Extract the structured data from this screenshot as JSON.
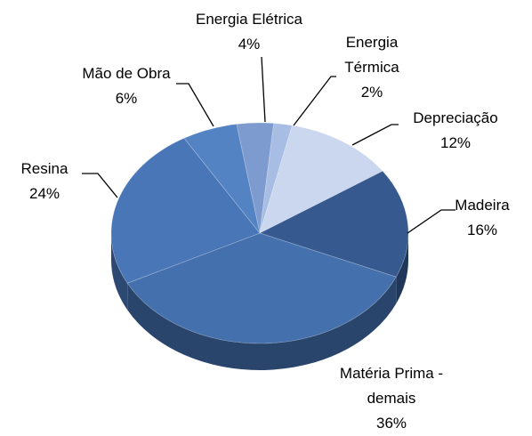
{
  "chart_data": {
    "type": "pie3d",
    "categories": [
      "Energia Elétrica",
      "Energia Térmica",
      "Depreciação",
      "Madeira",
      "Matéria Prima - demais",
      "Resina",
      "Mão de Obra"
    ],
    "values": [
      4,
      2,
      12,
      16,
      36,
      24,
      6
    ],
    "value_labels": [
      "4%",
      "2%",
      "12%",
      "16%",
      "36%",
      "24%",
      "6%"
    ],
    "colors": [
      "#7e9bcf",
      "#a8bde3",
      "#cad7ee",
      "#36598f",
      "#4470ad",
      "#4976b6",
      "#5483c4"
    ]
  }
}
